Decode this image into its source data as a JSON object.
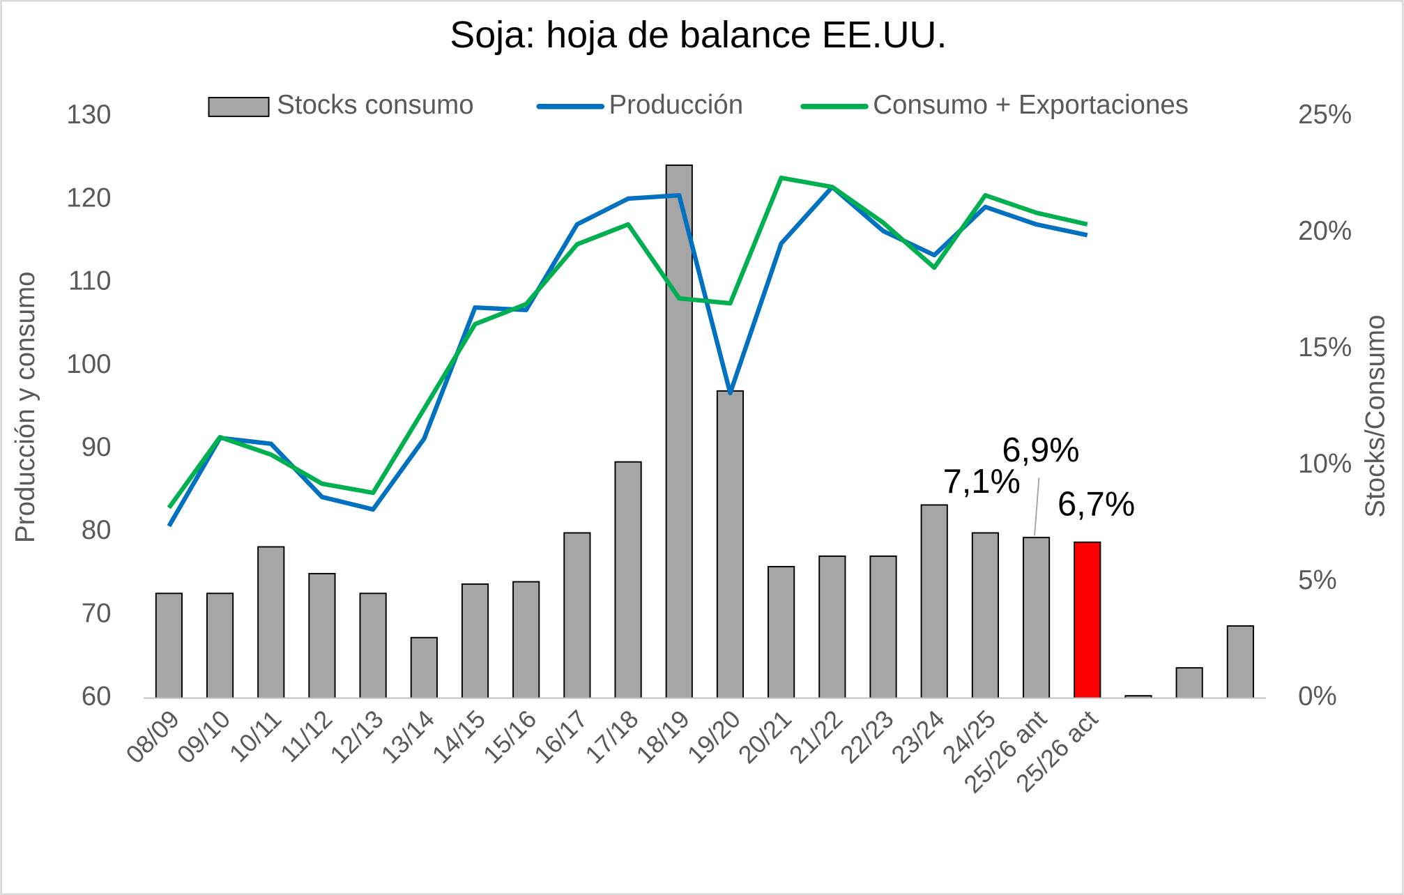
{
  "chart_data": {
    "type": "bar-line",
    "title": "Soja: hoja de balance EE.UU.",
    "y_label": "Producción y consumo",
    "y2_label": "Stocks/Consumo",
    "categories": [
      "08/09",
      "09/10",
      "10/11",
      "11/12",
      "12/13",
      "13/14",
      "14/15",
      "15/16",
      "16/17",
      "17/18",
      "18/19",
      "19/20",
      "20/21",
      "21/22",
      "22/23",
      "23/24",
      "24/25",
      "25/26 ant",
      "25/26 act",
      null,
      null,
      null
    ],
    "ylim": [
      60,
      130
    ],
    "yticks": [
      60,
      70,
      80,
      90,
      100,
      110,
      120,
      130
    ],
    "y2lim": [
      0,
      25
    ],
    "y2ticks": [
      {
        "value": 0,
        "label": "0%"
      },
      {
        "value": 5,
        "label": "5%"
      },
      {
        "value": 10,
        "label": "10%"
      },
      {
        "value": 15,
        "label": "15%"
      },
      {
        "value": 20,
        "label": "20%"
      },
      {
        "value": 25,
        "label": "25%"
      }
    ],
    "legend": "top",
    "series": [
      {
        "name": "Stocks consumo",
        "type": "bar",
        "axis": "y2",
        "color": "#a6a6a6",
        "colors": [
          "#a6a6a6",
          "#a6a6a6",
          "#a6a6a6",
          "#a6a6a6",
          "#a6a6a6",
          "#a6a6a6",
          "#a6a6a6",
          "#a6a6a6",
          "#a6a6a6",
          "#a6a6a6",
          "#a6a6a6",
          "#a6a6a6",
          "#a6a6a6",
          "#a6a6a6",
          "#a6a6a6",
          "#a6a6a6",
          "#a6a6a6",
          "#a6a6a6",
          "#ff0000",
          "#a6a6a6",
          "#a6a6a6",
          "#a6a6a6"
        ],
        "values": [
          4.5,
          4.5,
          6.5,
          5.35,
          4.5,
          2.6,
          4.9,
          5.0,
          7.1,
          10.15,
          22.9,
          13.2,
          5.65,
          6.1,
          6.1,
          8.3,
          7.1,
          6.9,
          6.7,
          0.1,
          1.3,
          3.1
        ],
        "value_labels": [
          null,
          null,
          null,
          null,
          null,
          null,
          null,
          null,
          null,
          null,
          null,
          null,
          null,
          null,
          null,
          null,
          "7,1%",
          "6,9%",
          "6,7%",
          null,
          null,
          null
        ]
      },
      {
        "name": "Producción",
        "type": "line",
        "color": "#0070c0",
        "values": [
          80.7,
          91.3,
          90.6,
          84.2,
          82.7,
          91.2,
          107.0,
          106.7,
          117.0,
          120.1,
          120.5,
          96.7,
          114.7,
          121.5,
          116.2,
          113.3,
          119.1,
          117.0,
          115.7,
          null,
          null,
          null
        ]
      },
      {
        "name": "Consumo + Exportaciones",
        "type": "line",
        "color": "#00b050",
        "values": [
          82.9,
          91.4,
          89.3,
          85.8,
          84.7,
          94.8,
          105.0,
          107.4,
          114.6,
          117.0,
          108.1,
          107.5,
          122.6,
          121.5,
          117.2,
          111.8,
          120.5,
          118.4,
          117.0,
          null,
          null,
          null
        ]
      }
    ]
  }
}
